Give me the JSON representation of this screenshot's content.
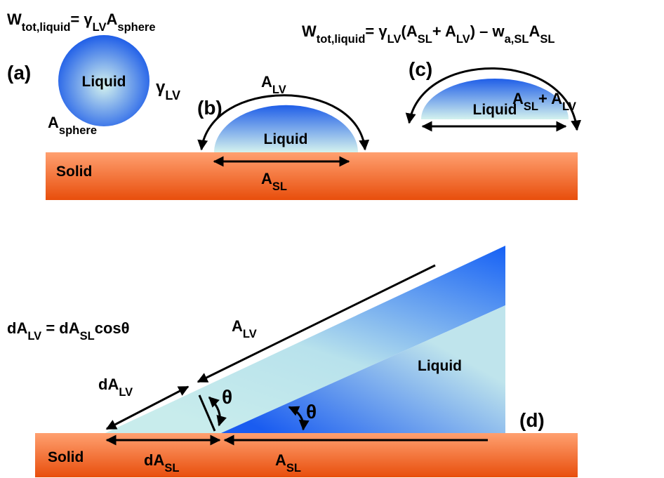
{
  "top": {
    "equation_a": [
      "W",
      "tot,liquid",
      "= γ",
      "LV",
      "A",
      "sphere"
    ],
    "equation_c": [
      "W",
      "tot,liquid",
      "= γ",
      "LV",
      "(A",
      "SL",
      "+ A",
      "LV",
      ") – w",
      "a,SL",
      "A",
      "SL"
    ],
    "panel_a": {
      "label": "(a)",
      "liquid": "Liquid",
      "surface_tension": [
        "γ",
        "LV"
      ],
      "area": [
        "A",
        "sphere"
      ]
    },
    "panel_b": {
      "label": "(b)",
      "liquid": "Liquid",
      "lv_area": [
        "A",
        "LV"
      ],
      "sl_area": [
        "A",
        "SL"
      ]
    },
    "panel_c": {
      "label": "(c)",
      "liquid": "Liquid",
      "total_area": [
        "A",
        "SL",
        "+ A",
        "LV"
      ]
    },
    "solid": "Solid"
  },
  "bottom": {
    "equation": [
      "dA",
      "LV",
      " = dA",
      "SL",
      "cosθ"
    ],
    "label": "(d)",
    "liquid": "Liquid",
    "solid": "Solid",
    "lv_area": [
      "A",
      "LV"
    ],
    "d_lv_area": [
      "dA",
      "LV"
    ],
    "d_sl_area": [
      "dA",
      "SL"
    ],
    "sl_area": [
      "A",
      "SL"
    ],
    "angle_left": "θ",
    "angle_right": "θ"
  }
}
